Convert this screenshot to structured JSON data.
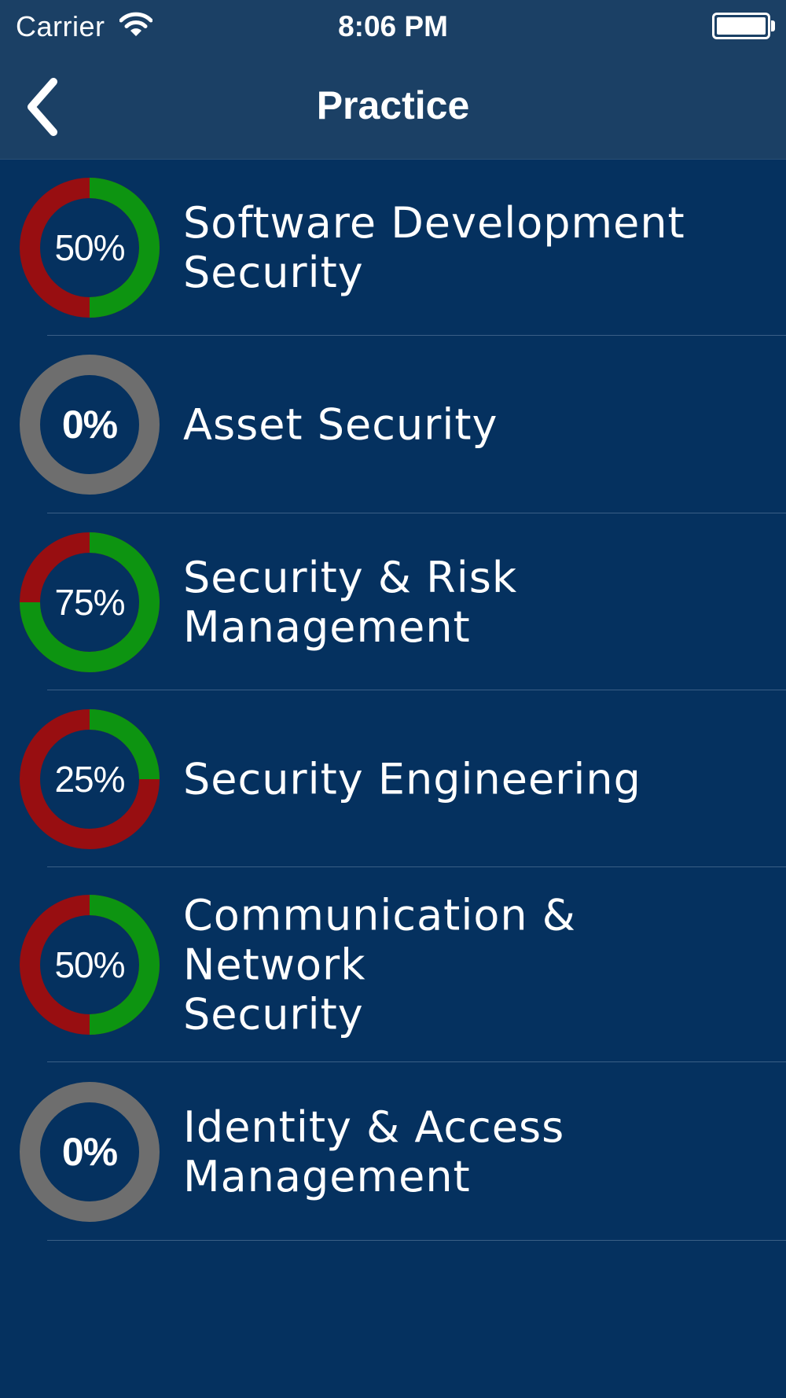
{
  "status_bar": {
    "carrier": "Carrier",
    "time": "8:06 PM",
    "wifi_icon": "wifi-icon",
    "battery_icon": "battery-icon"
  },
  "nav": {
    "title": "Practice",
    "back_icon": "chevron-left-icon"
  },
  "colors": {
    "background": "#05315F",
    "nav_background": "#1B4065",
    "correct": "#0D9411",
    "incorrect": "#980E11",
    "unanswered": "#6E6E6E",
    "text": "#FFFFFF"
  },
  "topics": [
    {
      "label": "Software Development\nSecurity",
      "percent_label": "50%",
      "progress": 0.5
    },
    {
      "label": "Asset Security",
      "percent_label": "0%",
      "progress": 0
    },
    {
      "label": "Security & Risk\nManagement",
      "percent_label": "75%",
      "progress": 0.75
    },
    {
      "label": "Security Engineering",
      "percent_label": "25%",
      "progress": 0.25
    },
    {
      "label": "Communication & Network\nSecurity",
      "percent_label": "50%",
      "progress": 0.5
    },
    {
      "label": "Identity & Access\nManagement",
      "percent_label": "0%",
      "progress": 0
    }
  ]
}
